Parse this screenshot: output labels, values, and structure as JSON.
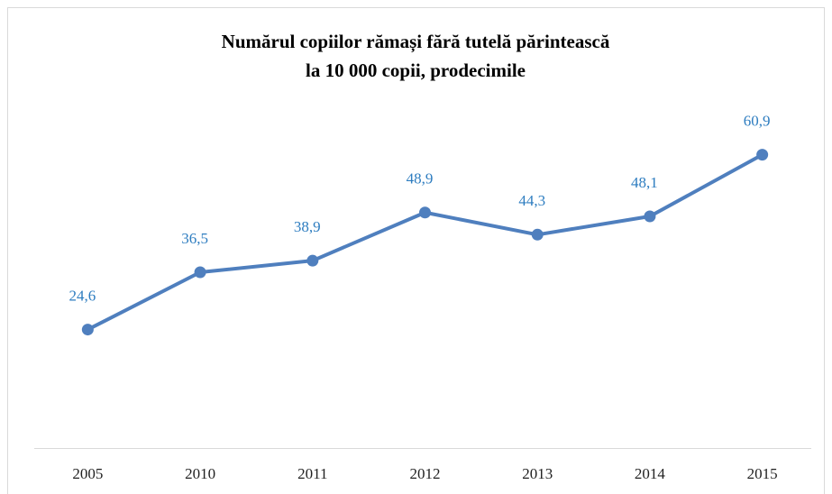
{
  "chart_data": {
    "type": "line",
    "title": [
      "Numărul copiilor rămași fără tutelă părintească",
      "la 10 000 copii, prodecimile"
    ],
    "categories": [
      "2005",
      "2010",
      "2011",
      "2012",
      "2013",
      "2014",
      "2015"
    ],
    "values": [
      24.6,
      36.5,
      38.9,
      48.9,
      44.3,
      48.1,
      60.9
    ],
    "value_labels": [
      "24,6",
      "36,5",
      "38,9",
      "48,9",
      "44,3",
      "48,1",
      "60,9"
    ],
    "color": "#4f7fbe",
    "label_color": "#2e7dc0",
    "ylim": [
      0,
      70
    ],
    "grid": false
  }
}
